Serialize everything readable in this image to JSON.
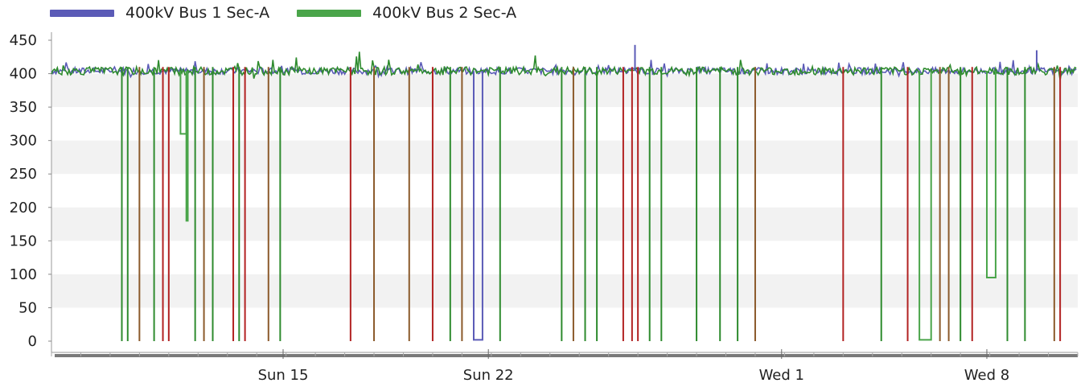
{
  "colors": {
    "bus1": "#5b5bb7",
    "bus2": "#4aa54a",
    "drop": "#b22222",
    "drop_alt": "#8b5a2b",
    "grid_band": "#f2f2f2"
  },
  "chart_data": {
    "type": "line",
    "title": "",
    "xlabel": "",
    "ylabel": "",
    "ylim": [
      0,
      450
    ],
    "yticks": [
      0,
      50,
      100,
      150,
      200,
      250,
      300,
      350,
      400,
      450
    ],
    "xlim": [
      0,
      35
    ],
    "xticks": [
      {
        "x": 7.9,
        "label": "Sun 15"
      },
      {
        "x": 14.9,
        "label": "Sun 22"
      },
      {
        "x": 24.9,
        "label": "Wed 1"
      },
      {
        "x": 31.9,
        "label": "Wed 8"
      }
    ],
    "legend": {
      "position": "top-left",
      "entries": [
        "400kV Bus 1 Sec-A",
        "400kV Bus 2 Sec-A"
      ]
    },
    "series": [
      {
        "name": "400kV Bus 1 Sec-A",
        "color": "#5b5bb7",
        "baseline": 404
      },
      {
        "name": "400kV Bus 2 Sec-A",
        "color": "#4aa54a",
        "baseline": 404
      }
    ],
    "notable_levels": [
      {
        "series": "400kV Bus 1 Sec-A",
        "x_range": [
          14.4,
          14.7
        ],
        "value": 2
      },
      {
        "series": "400kV Bus 2 Sec-A",
        "x_range": [
          4.4,
          4.6
        ],
        "value": 310
      },
      {
        "series": "400kV Bus 2 Sec-A",
        "x_range": [
          4.6,
          4.65
        ],
        "value": 180
      },
      {
        "series": "400kV Bus 2 Sec-A",
        "x_range": [
          29.6,
          30.0
        ],
        "value": 2
      },
      {
        "series": "400kV Bus 2 Sec-A",
        "x_range": [
          31.9,
          32.2
        ],
        "value": 95
      }
    ],
    "drops": [
      {
        "x": 2.4,
        "min": 0,
        "color": "green"
      },
      {
        "x": 2.6,
        "min": 0,
        "color": "green"
      },
      {
        "x": 3.0,
        "min": 0,
        "color": "brown"
      },
      {
        "x": 3.5,
        "min": 0,
        "color": "green"
      },
      {
        "x": 3.8,
        "min": 0,
        "color": "red"
      },
      {
        "x": 4.0,
        "min": 0,
        "color": "red"
      },
      {
        "x": 4.9,
        "min": 0,
        "color": "green"
      },
      {
        "x": 5.2,
        "min": 0,
        "color": "brown"
      },
      {
        "x": 5.5,
        "min": 0,
        "color": "green"
      },
      {
        "x": 6.2,
        "min": 0,
        "color": "red"
      },
      {
        "x": 6.4,
        "min": 0,
        "color": "green"
      },
      {
        "x": 6.6,
        "min": 0,
        "color": "red"
      },
      {
        "x": 7.4,
        "min": 0,
        "color": "brown"
      },
      {
        "x": 7.8,
        "min": 0,
        "color": "green"
      },
      {
        "x": 10.2,
        "min": 0,
        "color": "red"
      },
      {
        "x": 11.0,
        "min": 0,
        "color": "brown"
      },
      {
        "x": 12.2,
        "min": 0,
        "color": "brown"
      },
      {
        "x": 13.0,
        "min": 0,
        "color": "red"
      },
      {
        "x": 13.6,
        "min": 0,
        "color": "green"
      },
      {
        "x": 14.0,
        "min": 0,
        "color": "brown"
      },
      {
        "x": 15.3,
        "min": 0,
        "color": "green"
      },
      {
        "x": 17.4,
        "min": 0,
        "color": "green"
      },
      {
        "x": 17.8,
        "min": 0,
        "color": "brown"
      },
      {
        "x": 18.2,
        "min": 0,
        "color": "green"
      },
      {
        "x": 18.6,
        "min": 0,
        "color": "green"
      },
      {
        "x": 19.5,
        "min": 0,
        "color": "red"
      },
      {
        "x": 19.8,
        "min": 0,
        "color": "red"
      },
      {
        "x": 20.0,
        "min": 0,
        "color": "red"
      },
      {
        "x": 20.4,
        "min": 0,
        "color": "green"
      },
      {
        "x": 20.8,
        "min": 0,
        "color": "green"
      },
      {
        "x": 22.0,
        "min": 0,
        "color": "green"
      },
      {
        "x": 22.8,
        "min": 0,
        "color": "green"
      },
      {
        "x": 23.4,
        "min": 0,
        "color": "green"
      },
      {
        "x": 24.0,
        "min": 0,
        "color": "brown"
      },
      {
        "x": 27.0,
        "min": 0,
        "color": "red"
      },
      {
        "x": 28.3,
        "min": 0,
        "color": "green"
      },
      {
        "x": 29.2,
        "min": 0,
        "color": "red"
      },
      {
        "x": 30.3,
        "min": 0,
        "color": "brown"
      },
      {
        "x": 30.6,
        "min": 0,
        "color": "brown"
      },
      {
        "x": 31.0,
        "min": 0,
        "color": "green"
      },
      {
        "x": 31.4,
        "min": 0,
        "color": "red"
      },
      {
        "x": 32.6,
        "min": 0,
        "color": "green"
      },
      {
        "x": 33.2,
        "min": 0,
        "color": "green"
      },
      {
        "x": 34.2,
        "min": 0,
        "color": "brown"
      },
      {
        "x": 34.4,
        "min": 0,
        "color": "red"
      }
    ],
    "grid": "alternating horizontal bands",
    "peak_values": [
      {
        "series": "400kV Bus 1 Sec-A",
        "x": 19.9,
        "value": 443
      },
      {
        "series": "400kV Bus 1 Sec-A",
        "x": 33.6,
        "value": 435
      }
    ]
  }
}
